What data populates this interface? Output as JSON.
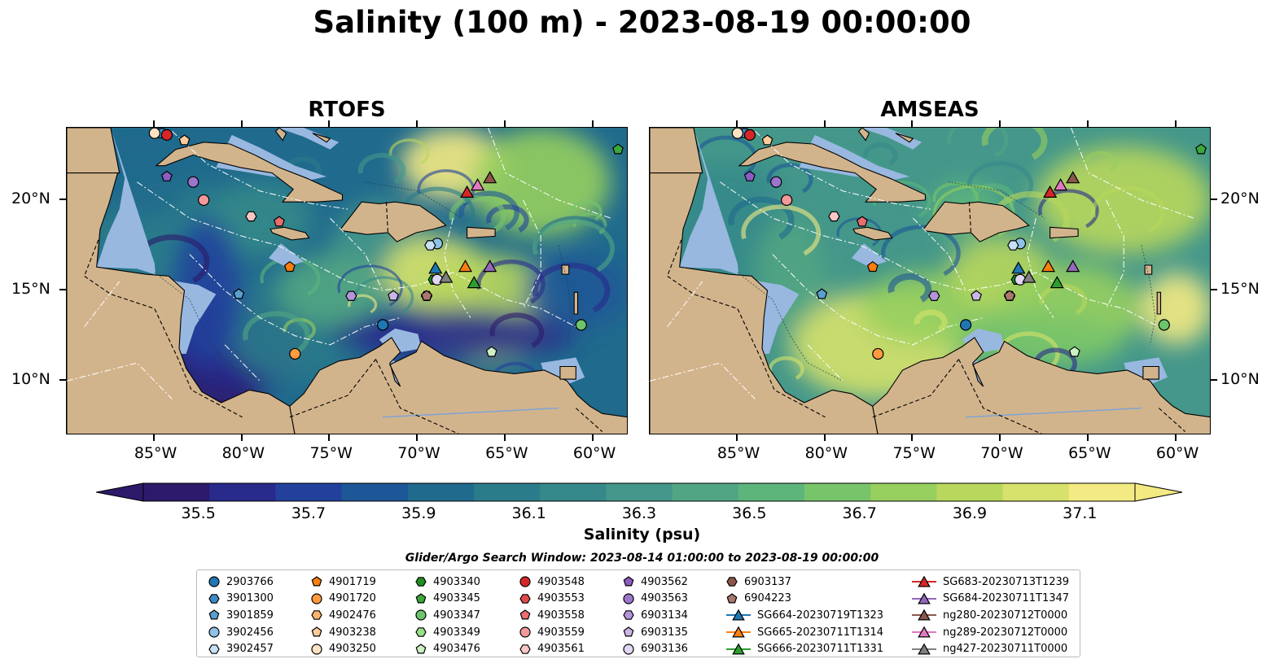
{
  "title": "Salinity (100 m) - 2023-08-19 00:00:00",
  "panels": [
    {
      "title": "RTOFS",
      "scheme": "rtofs"
    },
    {
      "title": "AMSEAS",
      "scheme": "amseas"
    }
  ],
  "lon_ticks": [
    "85°W",
    "80°W",
    "75°W",
    "70°W",
    "65°W",
    "60°W"
  ],
  "lat_ticks": [
    "20°N",
    "15°N",
    "10°N"
  ],
  "colorbar": {
    "label": "Salinity (psu)",
    "ticks": [
      "35.5",
      "35.7",
      "35.9",
      "36.1",
      "36.3",
      "36.5",
      "36.7",
      "36.9",
      "37.1"
    ],
    "colors": [
      "#2c1a6a",
      "#282a8c",
      "#23419c",
      "#1d5797",
      "#206a8d",
      "#2a7c8a",
      "#35898a",
      "#44978a",
      "#52a583",
      "#5db57c",
      "#78c46b",
      "#96cf5e",
      "#b8d75c",
      "#d6e26b",
      "#f4ea83"
    ]
  },
  "search_window": "Glider/Argo Search Window: 2023-08-14 01:00:00 to 2023-08-19 00:00:00",
  "legend": {
    "columns": [
      [
        {
          "label": "2903766",
          "marker": "circle",
          "color": "#1f77b4"
        },
        {
          "label": "3901300",
          "marker": "hexagon",
          "color": "#3b8bc2"
        },
        {
          "label": "3901859",
          "marker": "pentagon",
          "color": "#5a9fd0"
        },
        {
          "label": "3902456",
          "marker": "circle",
          "color": "#8ec2e6"
        },
        {
          "label": "3902457",
          "marker": "hexagon",
          "color": "#c6e0f4"
        }
      ],
      [
        {
          "label": "4901719",
          "marker": "pentagon",
          "color": "#ff7f0e"
        },
        {
          "label": "4901720",
          "marker": "circle",
          "color": "#ff9a3e"
        },
        {
          "label": "4902476",
          "marker": "hexagon",
          "color": "#ffb36e"
        },
        {
          "label": "4903238",
          "marker": "pentagon",
          "color": "#ffcc99"
        },
        {
          "label": "4903250",
          "marker": "circle",
          "color": "#ffe2c4"
        }
      ],
      [
        {
          "label": "4903340",
          "marker": "hexagon",
          "color": "#1f8f1f"
        },
        {
          "label": "4903345",
          "marker": "pentagon",
          "color": "#3aa83a"
        },
        {
          "label": "4903347",
          "marker": "circle",
          "color": "#6cc46c"
        },
        {
          "label": "4903349",
          "marker": "hexagon",
          "color": "#98df8a"
        },
        {
          "label": "4903476",
          "marker": "pentagon",
          "color": "#cdf0c4"
        }
      ],
      [
        {
          "label": "4903548",
          "marker": "circle",
          "color": "#d62728"
        },
        {
          "label": "4903553",
          "marker": "hexagon",
          "color": "#e04a4b"
        },
        {
          "label": "4903558",
          "marker": "pentagon",
          "color": "#ea6e6f"
        },
        {
          "label": "4903559",
          "marker": "circle",
          "color": "#f29999"
        },
        {
          "label": "4903561",
          "marker": "hexagon",
          "color": "#f9c7c7"
        }
      ],
      [
        {
          "label": "4903562",
          "marker": "pentagon",
          "color": "#8c5cc2"
        },
        {
          "label": "4903563",
          "marker": "circle",
          "color": "#9e75cc"
        },
        {
          "label": "6903134",
          "marker": "hexagon",
          "color": "#b495d9"
        },
        {
          "label": "6903135",
          "marker": "pentagon",
          "color": "#cab6e6"
        },
        {
          "label": "6903136",
          "marker": "circle",
          "color": "#e1d6f4"
        }
      ],
      [
        {
          "label": "6903137",
          "marker": "hexagon",
          "color": "#8c564b"
        },
        {
          "label": "6904223",
          "marker": "pentagon",
          "color": "#a8786d"
        },
        {
          "label": "SG664-20230719T1323",
          "marker": "triangle-line",
          "color": "#1f77b4"
        },
        {
          "label": "SG665-20230711T1314",
          "marker": "triangle-line",
          "color": "#ff7f0e"
        },
        {
          "label": "SG666-20230711T1331",
          "marker": "triangle-line",
          "color": "#2ca02c"
        }
      ],
      [
        {
          "label": "SG683-20230713T1239",
          "marker": "triangle-line",
          "color": "#d62728"
        },
        {
          "label": "SG684-20230711T1347",
          "marker": "triangle-line",
          "color": "#9467bd"
        },
        {
          "label": "ng280-20230712T0000",
          "marker": "triangle-line",
          "color": "#8c564b"
        },
        {
          "label": "ng289-20230712T0000",
          "marker": "triangle-line",
          "color": "#e377c2"
        },
        {
          "label": "ng427-20230711T0000",
          "marker": "triangle-line",
          "color": "#7f7f7f"
        }
      ]
    ]
  },
  "map": {
    "lon_range": [
      -90,
      -58
    ],
    "lat_range": [
      7,
      24
    ],
    "land_color": "#d2b48c",
    "shelf_color": "#98b8e0",
    "floats": [
      {
        "id": "2903766",
        "lon": -72,
        "lat": 13.1
      },
      {
        "id": "3901300",
        "lon": -84.6,
        "lat": 23.7
      },
      {
        "id": "3901859",
        "lon": -80.2,
        "lat": 14.8
      },
      {
        "id": "3902456",
        "lon": -68.9,
        "lat": 17.6
      },
      {
        "id": "3902457",
        "lon": -69.3,
        "lat": 17.5
      },
      {
        "id": "4901719",
        "lon": -77.3,
        "lat": 16.3
      },
      {
        "id": "4901720",
        "lon": -77.0,
        "lat": 11.5
      },
      {
        "id": "4903238",
        "lon": -83.3,
        "lat": 23.3
      },
      {
        "id": "4903250",
        "lon": -85,
        "lat": 23.7
      },
      {
        "id": "4903340",
        "lon": -69.1,
        "lat": 15.6
      },
      {
        "id": "4903345",
        "lon": -58.6,
        "lat": 22.8
      },
      {
        "id": "4903347",
        "lon": -60.7,
        "lat": 13.1
      },
      {
        "id": "4903476",
        "lon": -65.8,
        "lat": 11.6
      },
      {
        "id": "4903548",
        "lon": -84.3,
        "lat": 23.6
      },
      {
        "id": "4903558",
        "lon": -77.9,
        "lat": 18.8
      },
      {
        "id": "4903559",
        "lon": -82.2,
        "lat": 20.0
      },
      {
        "id": "4903561",
        "lon": -79.5,
        "lat": 19.1
      },
      {
        "id": "4903562",
        "lon": -84.3,
        "lat": 21.3
      },
      {
        "id": "4903563",
        "lon": -82.8,
        "lat": 21.0
      },
      {
        "id": "6903134",
        "lon": -73.8,
        "lat": 14.7
      },
      {
        "id": "6903135",
        "lon": -71.4,
        "lat": 14.7
      },
      {
        "id": "6903136",
        "lon": -68.9,
        "lat": 15.6
      },
      {
        "id": "6903137",
        "lon": -69.5,
        "lat": 14.7
      },
      {
        "id": "6904223",
        "lon": -69.5,
        "lat": 14.7
      }
    ],
    "gliders": [
      {
        "id": "SG664-20230719T1323",
        "lon": -69.0,
        "lat": 16.2
      },
      {
        "id": "SG665-20230711T1314",
        "lon": -67.3,
        "lat": 16.3
      },
      {
        "id": "SG666-20230711T1331",
        "lon": -66.8,
        "lat": 15.4
      },
      {
        "id": "SG683-20230713T1239",
        "lon": -67.2,
        "lat": 20.4
      },
      {
        "id": "SG684-20230711T1347",
        "lon": -65.9,
        "lat": 16.3
      },
      {
        "id": "ng280-20230712T0000",
        "lon": -65.9,
        "lat": 21.2
      },
      {
        "id": "ng289-20230712T0000",
        "lon": -66.6,
        "lat": 20.8
      },
      {
        "id": "ng427-20230711T0000",
        "lon": -68.4,
        "lat": 15.7
      }
    ]
  }
}
